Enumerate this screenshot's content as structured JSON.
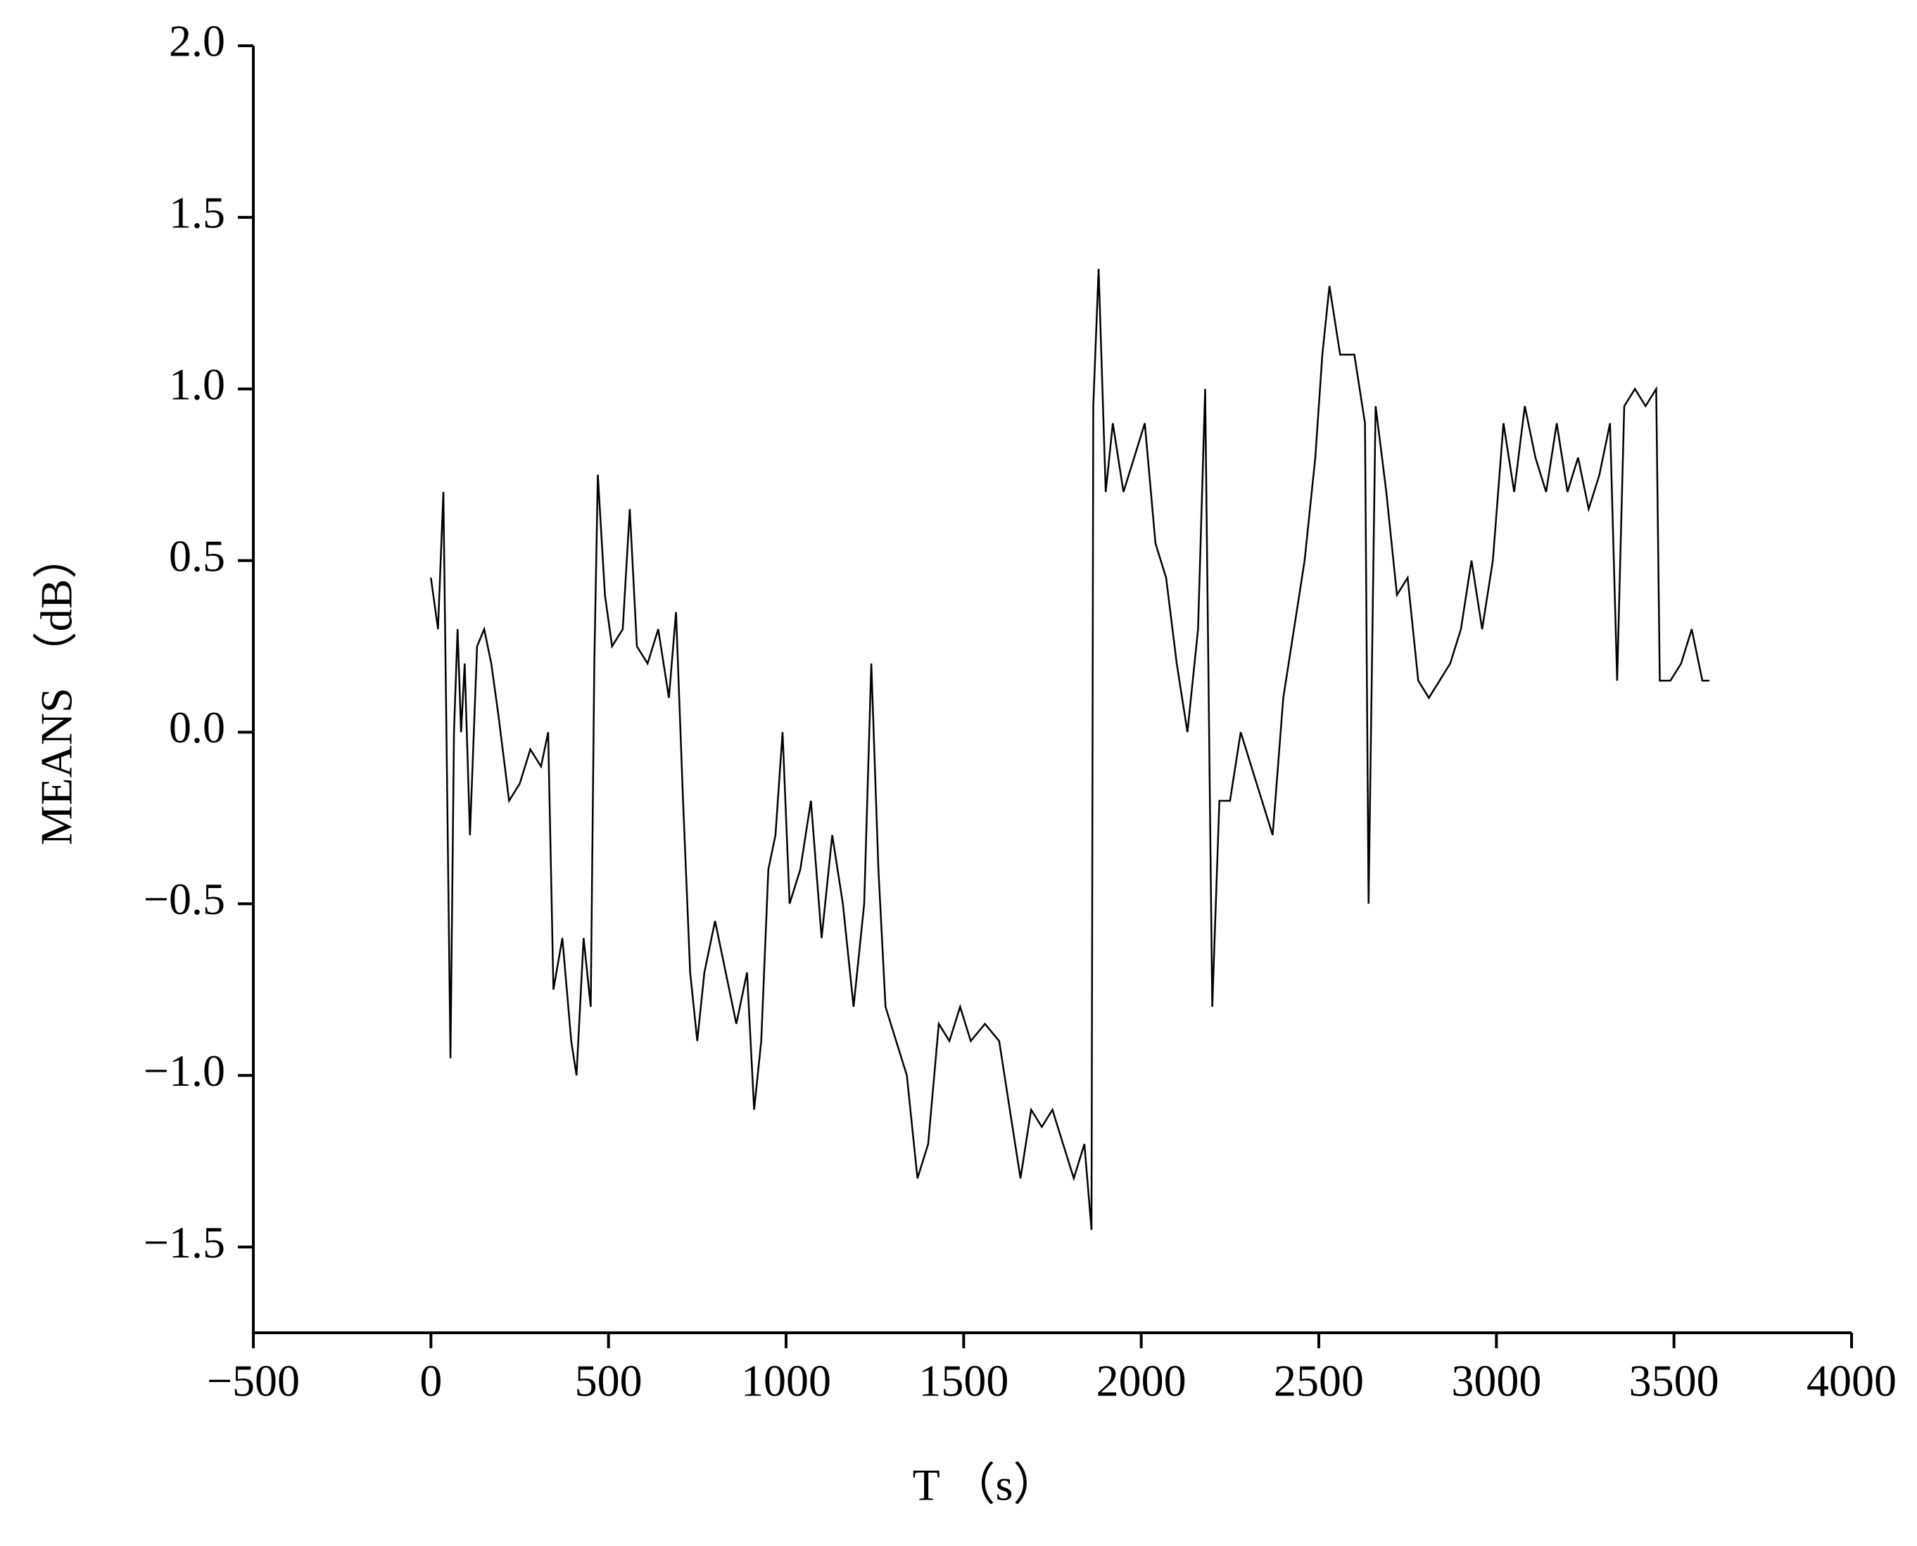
{
  "chart_data": {
    "type": "line",
    "xlabel": "T （s）",
    "ylabel": "MEANS （dB）",
    "xlim": [
      -500,
      4000
    ],
    "xticks": [
      {
        "value": -500,
        "label": "−500"
      },
      0,
      500,
      1000,
      1500,
      2000,
      2500,
      3000,
      3500,
      4000
    ],
    "ylim": [
      -1.75,
      2.0
    ],
    "yticks": [
      {
        "value": 2.0,
        "label": "2.0"
      },
      {
        "value": 1.5,
        "label": "1.5"
      },
      {
        "value": 1.0,
        "label": "1.0"
      },
      {
        "value": 0.5,
        "label": "0.5"
      },
      {
        "value": 0.0,
        "label": "0.0"
      },
      {
        "value": -0.5,
        "label": "−0.5"
      },
      {
        "value": -1.0,
        "label": "−1.0"
      },
      {
        "value": -1.5,
        "label": "−1.5"
      }
    ],
    "grid": false,
    "series": [
      {
        "color": "#000000",
        "x": [
          0,
          20,
          35,
          45,
          55,
          65,
          75,
          85,
          95,
          110,
          130,
          150,
          170,
          190,
          220,
          250,
          280,
          310,
          330,
          345,
          370,
          395,
          410,
          430,
          450,
          460,
          470,
          490,
          510,
          540,
          560,
          580,
          610,
          640,
          670,
          690,
          710,
          730,
          750,
          770,
          800,
          830,
          860,
          890,
          910,
          930,
          950,
          970,
          990,
          1010,
          1040,
          1070,
          1100,
          1130,
          1160,
          1190,
          1220,
          1240,
          1260,
          1280,
          1310,
          1340,
          1370,
          1400,
          1430,
          1460,
          1490,
          1520,
          1560,
          1600,
          1630,
          1660,
          1690,
          1720,
          1750,
          1780,
          1810,
          1840,
          1860,
          1865,
          1880,
          1900,
          1920,
          1950,
          1980,
          2010,
          2040,
          2070,
          2100,
          2130,
          2160,
          2180,
          2200,
          2220,
          2250,
          2280,
          2310,
          2340,
          2370,
          2400,
          2430,
          2460,
          2490,
          2510,
          2530,
          2560,
          2600,
          2630,
          2640,
          2660,
          2690,
          2720,
          2750,
          2780,
          2810,
          2840,
          2870,
          2900,
          2930,
          2960,
          2990,
          3020,
          3050,
          3080,
          3110,
          3140,
          3170,
          3200,
          3230,
          3260,
          3290,
          3320,
          3340,
          3360,
          3390,
          3420,
          3450,
          3460,
          3490,
          3520,
          3550,
          3580,
          3600
        ],
        "values": [
          0.45,
          0.3,
          0.7,
          -0.1,
          -0.95,
          0.0,
          0.3,
          0.0,
          0.2,
          -0.3,
          0.25,
          0.3,
          0.2,
          0.05,
          -0.2,
          -0.15,
          -0.05,
          -0.1,
          0.0,
          -0.75,
          -0.6,
          -0.9,
          -1.0,
          -0.6,
          -0.8,
          0.2,
          0.75,
          0.4,
          0.25,
          0.3,
          0.65,
          0.25,
          0.2,
          0.3,
          0.1,
          0.35,
          -0.2,
          -0.7,
          -0.9,
          -0.7,
          -0.55,
          -0.7,
          -0.85,
          -0.7,
          -1.1,
          -0.9,
          -0.4,
          -0.3,
          0.0,
          -0.5,
          -0.4,
          -0.2,
          -0.6,
          -0.3,
          -0.5,
          -0.8,
          -0.5,
          0.2,
          -0.4,
          -0.8,
          -0.9,
          -1.0,
          -1.3,
          -1.2,
          -0.85,
          -0.9,
          -0.8,
          -0.9,
          -0.85,
          -0.9,
          -1.1,
          -1.3,
          -1.1,
          -1.15,
          -1.1,
          -1.2,
          -1.3,
          -1.2,
          -1.45,
          0.95,
          1.35,
          0.7,
          0.9,
          0.7,
          0.8,
          0.9,
          0.55,
          0.45,
          0.2,
          0.0,
          0.3,
          1.0,
          -0.8,
          -0.2,
          -0.2,
          0.0,
          -0.1,
          -0.2,
          -0.3,
          0.1,
          0.3,
          0.5,
          0.8,
          1.1,
          1.3,
          1.1,
          1.1,
          0.9,
          -0.5,
          0.95,
          0.7,
          0.4,
          0.45,
          0.15,
          0.1,
          0.15,
          0.2,
          0.3,
          0.5,
          0.3,
          0.5,
          0.9,
          0.7,
          0.95,
          0.8,
          0.7,
          0.9,
          0.7,
          0.8,
          0.65,
          0.75,
          0.9,
          0.15,
          0.95,
          1.0,
          0.95,
          1.0,
          0.15,
          0.15,
          0.2,
          0.3,
          0.15,
          0.15
        ]
      }
    ]
  }
}
